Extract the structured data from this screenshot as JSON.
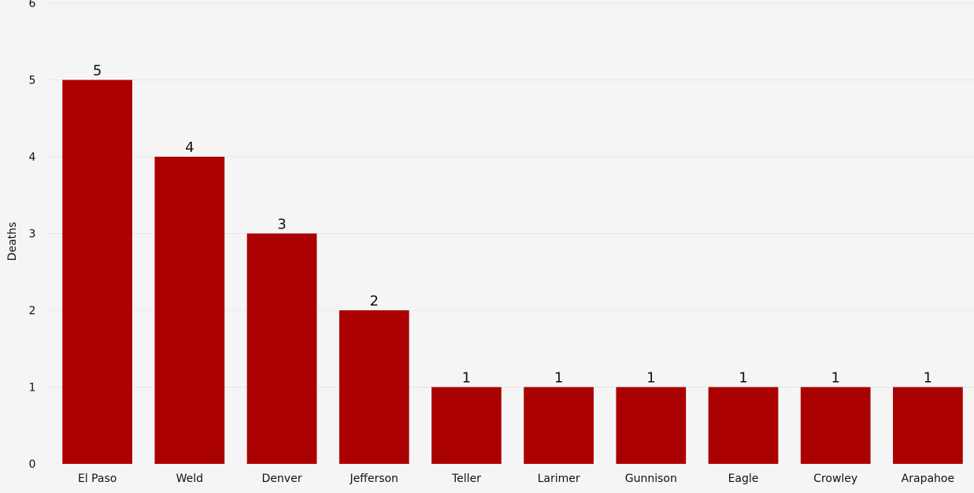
{
  "chart_data": {
    "type": "bar",
    "categories": [
      "El Paso",
      "Weld",
      "Denver",
      "Jefferson",
      "Teller",
      "Larimer",
      "Gunnison",
      "Eagle",
      "Crowley",
      "Arapahoe"
    ],
    "values": [
      5,
      4,
      3,
      2,
      1,
      1,
      1,
      1,
      1,
      1
    ],
    "title": "",
    "xlabel": "",
    "ylabel": "Deaths",
    "ylim": [
      0,
      6
    ],
    "yticks": [
      0,
      1,
      2,
      3,
      4,
      5,
      6
    ],
    "grid": true,
    "data_labels": true,
    "bar_color": "#aa0000",
    "background_color": "#f5f5f5",
    "grid_color": "#e6e6e6"
  }
}
